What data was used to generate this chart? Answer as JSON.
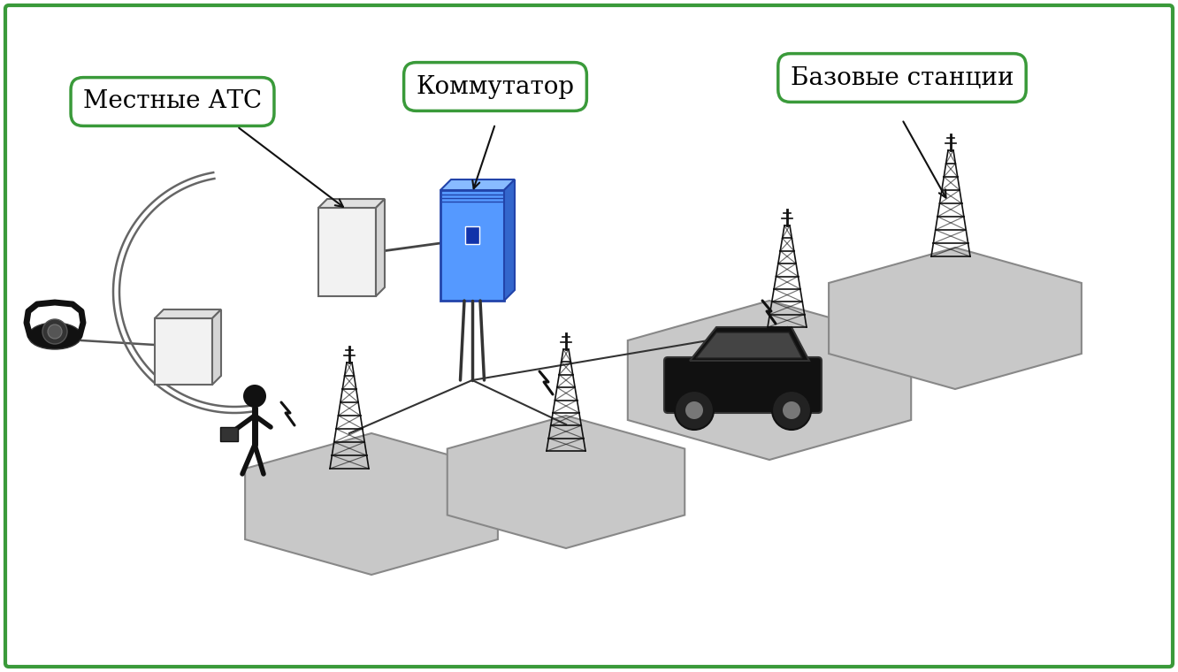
{
  "bg_color": "#ffffff",
  "border_color": "#3a9a3a",
  "border_width": 3,
  "label_mestnie": "Местные АТС",
  "label_kommutator": "Коммутатор",
  "label_bazovye": "Базовые станции",
  "label_fontsize": 20,
  "hex_color": "#c8c8c8",
  "hex_edge": "#888888",
  "figsize": [
    13.32,
    7.6
  ],
  "dpi": 100
}
